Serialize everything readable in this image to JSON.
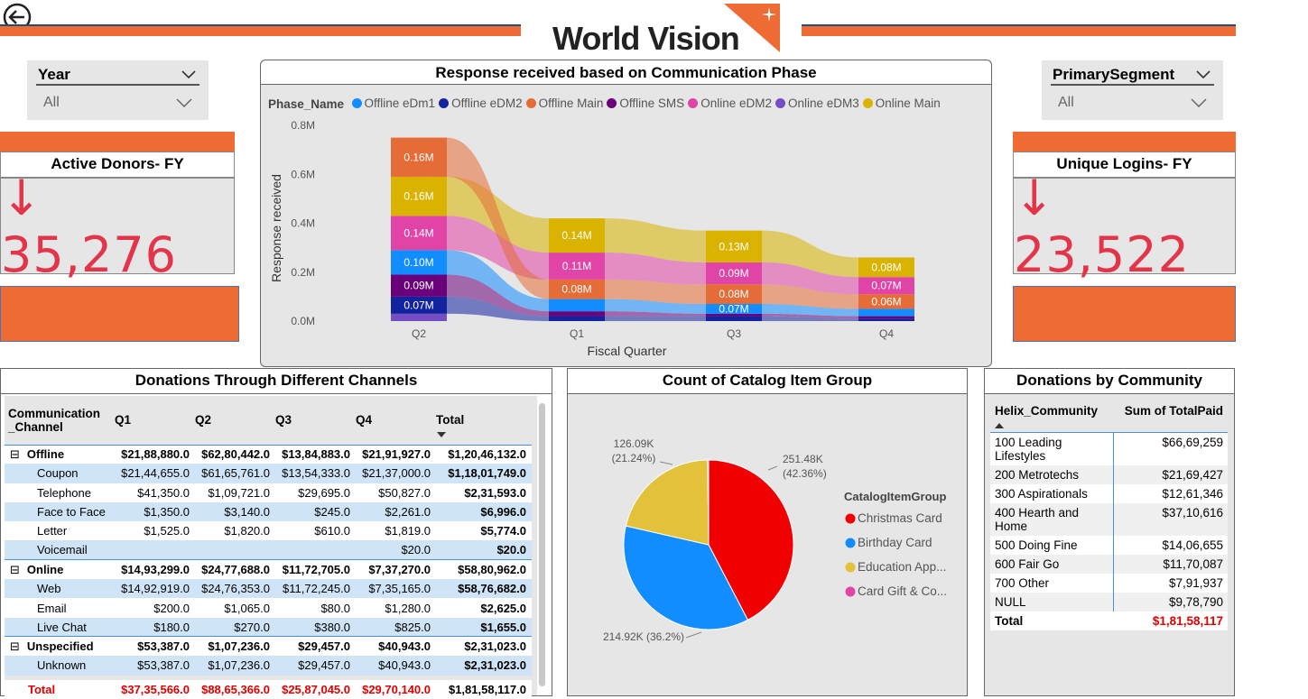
{
  "header": {
    "brand": "World Vision",
    "colors": {
      "accent": "#ee6b34",
      "kpi_red": "#e3344a",
      "total_red": "#e00000"
    }
  },
  "slicers": {
    "year": {
      "label": "Year",
      "value": "All"
    },
    "segment": {
      "label": "PrimarySegment",
      "value": "All"
    }
  },
  "kpis": {
    "active_donors": {
      "title": "Active Donors- FY",
      "value": "↓ 35,276"
    },
    "unique_logins": {
      "title": "Unique Logins- FY",
      "value": "↓ 23,522"
    }
  },
  "ribbon": {
    "title": "Response received based on Communication Phase",
    "legend_title": "Phase_Name",
    "ylabel": "Response received",
    "xlabel": "Fiscal Quarter"
  },
  "chart_data": [
    {
      "type": "area",
      "title": "Response received based on Communication Phase",
      "xlabel": "Fiscal Quarter",
      "ylabel": "Response received",
      "categories": [
        "Q2",
        "Q1",
        "Q3",
        "Q4"
      ],
      "y_ticks": [
        "0.0M",
        "0.2M",
        "0.4M",
        "0.6M",
        "0.8M"
      ],
      "ylim": [
        0,
        0.8
      ],
      "legend_position": "top",
      "series": [
        {
          "name": "Offline eDm1",
          "color": "#118dff",
          "values": [
            0.1,
            0.05,
            0.04,
            0.03
          ]
        },
        {
          "name": "Offline eDM2",
          "color": "#12239e",
          "values": [
            0.07,
            0.02,
            0.02,
            0.01
          ]
        },
        {
          "name": "Offline Main",
          "color": "#e66c37",
          "values": [
            0.0,
            0.08,
            0.08,
            0.06
          ]
        },
        {
          "name": "Offline SMS",
          "color": "#6b007b",
          "values": [
            0.09,
            0.02,
            0.01,
            0.01
          ]
        },
        {
          "name": "Online eDM2",
          "color": "#e044a7",
          "values": [
            0.14,
            0.11,
            0.09,
            0.07
          ]
        },
        {
          "name": "Online eDM3",
          "color": "#744ec2",
          "values": [
            0.03,
            0.0,
            0.0,
            0.0
          ]
        },
        {
          "name": "Online Main",
          "color": "#d9b300",
          "values": [
            0.16,
            0.14,
            0.13,
            0.08
          ]
        },
        {
          "name": "",
          "color": "#e66c37",
          "values": [
            0.16,
            0.0,
            0.0,
            0.0
          ]
        }
      ],
      "ribbon_order_by_quarter": [
        [
          "Online eDM3",
          "Offline eDM2",
          "Offline SMS",
          "Offline eDm1",
          "Online eDM2",
          "Online Main",
          "_top"
        ],
        [
          "Offline eDM2",
          "Offline SMS",
          "Offline eDm1",
          "Offline Main",
          "Online eDM2",
          "Online Main"
        ],
        [
          "Offline eDM2",
          "Offline SMS",
          "Offline eDm1",
          "Offline Main",
          "Online eDM2",
          "Online Main"
        ],
        [
          "Offline eDM2",
          "Offline SMS",
          "Offline eDm1",
          "Offline Main",
          "Online eDM2",
          "Online Main"
        ]
      ],
      "data_labels": [
        {
          "quarter": "Q2",
          "labels": [
            "0.07M",
            "0.09M",
            "0.10M",
            "0.14M",
            "0.16M",
            "0.16M"
          ]
        },
        {
          "quarter": "Q1",
          "labels": [
            "0.08M",
            "0.11M",
            "0.14M"
          ]
        },
        {
          "quarter": "Q3",
          "labels": [
            "0.07M",
            "0.08M",
            "0.09M",
            "0.13M"
          ]
        },
        {
          "quarter": "Q4",
          "labels": [
            "0.06M",
            "0.07M",
            "0.08M"
          ]
        }
      ]
    },
    {
      "type": "pie",
      "title": "Count of Catalog Item Group",
      "legend_title": "CatalogItemGroup",
      "legend_position": "right",
      "slices": [
        {
          "name": "Christmas Card",
          "value": 251.48,
          "label": "251.48K\n(42.36%)",
          "color": "#f00000"
        },
        {
          "name": "Birthday Card",
          "value": 214.92,
          "label": "214.92K (36.2%)",
          "color": "#118dff"
        },
        {
          "name": "Education App...",
          "value": 126.09,
          "label": "126.09K\n(21.24%)",
          "color": "#e4c13a"
        },
        {
          "name": "Card Gift & Co...",
          "value": 1.2,
          "label": "",
          "color": "#e044a7"
        }
      ]
    }
  ],
  "channels": {
    "title": "Donations Through Different Channels",
    "headers": [
      "Communication _Channel",
      "Q1",
      "Q2",
      "Q3",
      "Q4",
      "Total"
    ],
    "rows": [
      {
        "level": 1,
        "expand": "⊟",
        "name": "Offline",
        "vals": [
          "$21,88,880.0",
          "$62,80,442.0",
          "$13,84,883.0",
          "$21,91,927.0",
          "$1,20,46,132.0"
        ]
      },
      {
        "level": 2,
        "name": "Coupon",
        "vals": [
          "$21,44,655.0",
          "$61,65,761.0",
          "$13,54,333.0",
          "$21,37,000.0",
          "$1,18,01,749.0"
        ]
      },
      {
        "level": 2,
        "name": "Telephone",
        "vals": [
          "$41,350.0",
          "$1,09,721.0",
          "$29,695.0",
          "$50,827.0",
          "$2,31,593.0"
        ]
      },
      {
        "level": 2,
        "name": "Face to Face",
        "vals": [
          "$1,350.0",
          "$3,140.0",
          "$245.0",
          "$2,261.0",
          "$6,996.0"
        ]
      },
      {
        "level": 2,
        "name": "Letter",
        "vals": [
          "$1,525.0",
          "$1,820.0",
          "$610.0",
          "$1,819.0",
          "$5,774.0"
        ]
      },
      {
        "level": 2,
        "name": "Voicemail",
        "vals": [
          "",
          "",
          "",
          "$20.0",
          "$20.0"
        ]
      },
      {
        "level": 1,
        "expand": "⊟",
        "name": "Online",
        "vals": [
          "$14,93,299.0",
          "$24,77,688.0",
          "$11,72,705.0",
          "$7,37,270.0",
          "$58,80,962.0"
        ]
      },
      {
        "level": 2,
        "name": "Web",
        "vals": [
          "$14,92,919.0",
          "$24,76,353.0",
          "$11,72,245.0",
          "$7,35,165.0",
          "$58,76,682.0"
        ]
      },
      {
        "level": 2,
        "name": "Email",
        "vals": [
          "$200.0",
          "$1,065.0",
          "$80.0",
          "$1,280.0",
          "$2,625.0"
        ]
      },
      {
        "level": 2,
        "name": "Live Chat",
        "vals": [
          "$180.0",
          "$270.0",
          "$380.0",
          "$825.0",
          "$1,655.0"
        ]
      },
      {
        "level": 1,
        "expand": "⊟",
        "name": "Unspecified",
        "vals": [
          "$53,387.0",
          "$1,07,236.0",
          "$29,457.0",
          "$40,943.0",
          "$2,31,023.0"
        ]
      },
      {
        "level": 2,
        "name": "Unknown",
        "vals": [
          "$53,387.0",
          "$1,07,236.0",
          "$29,457.0",
          "$40,943.0",
          "$2,31,023.0"
        ]
      }
    ],
    "total": {
      "name": "Total",
      "vals": [
        "$37,35,566.0",
        "$88,65,366.0",
        "$25,87,045.0",
        "$29,70,140.0",
        "$1,81,58,117.0"
      ]
    }
  },
  "catalog": {
    "title": "Count of Catalog Item Group"
  },
  "community": {
    "title": "Donations by Community",
    "headers": [
      "Helix_Community",
      "Sum of TotalPaid"
    ],
    "rows": [
      {
        "name": "100 Leading Lifestyles",
        "value": "$66,69,259"
      },
      {
        "name": "200 Metrotechs",
        "value": "$21,69,427"
      },
      {
        "name": "300 Aspirationals",
        "value": "$12,61,346"
      },
      {
        "name": "400 Hearth and Home",
        "value": "$37,10,616"
      },
      {
        "name": "500 Doing Fine",
        "value": "$14,06,655"
      },
      {
        "name": "600 Fair Go",
        "value": "$11,70,087"
      },
      {
        "name": "700 Other",
        "value": "$7,91,937"
      },
      {
        "name": "NULL",
        "value": "$9,78,790"
      }
    ],
    "total": {
      "name": "Total",
      "value": "$1,81,58,117"
    }
  }
}
